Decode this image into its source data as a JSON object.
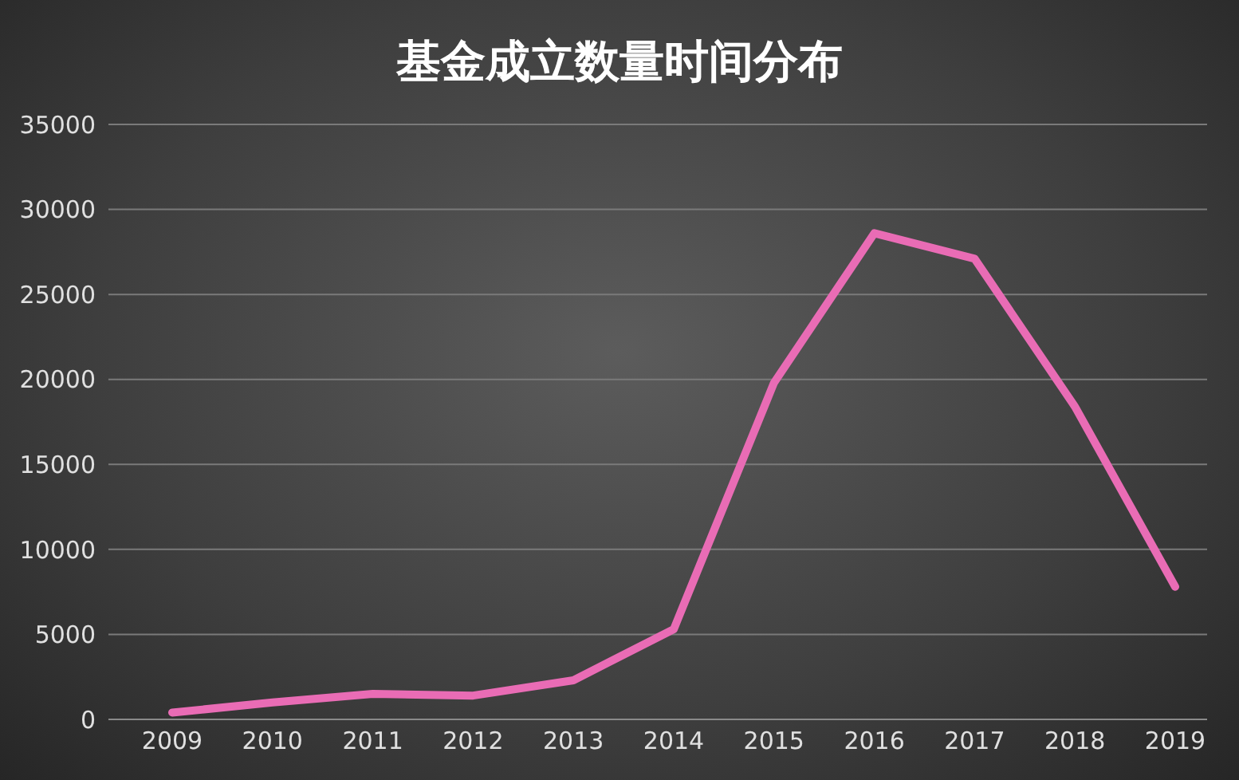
{
  "chart_data": {
    "type": "line",
    "title": "基金成立数量时间分布",
    "categories": [
      "2009",
      "2010",
      "2011",
      "2012",
      "2013",
      "2014",
      "2015",
      "2016",
      "2017",
      "2018",
      "2019"
    ],
    "series": [
      {
        "color": "#e96cb5",
        "values": [
          400,
          1000,
          1500,
          1400,
          2300,
          5300,
          19800,
          28600,
          27100,
          18400,
          7800
        ]
      }
    ],
    "ylim": [
      0,
      35000
    ],
    "yticks": [
      0,
      5000,
      10000,
      15000,
      20000,
      25000,
      30000,
      35000
    ],
    "grid": "y",
    "marker": "none",
    "line_style": "solid",
    "legend": false
  }
}
